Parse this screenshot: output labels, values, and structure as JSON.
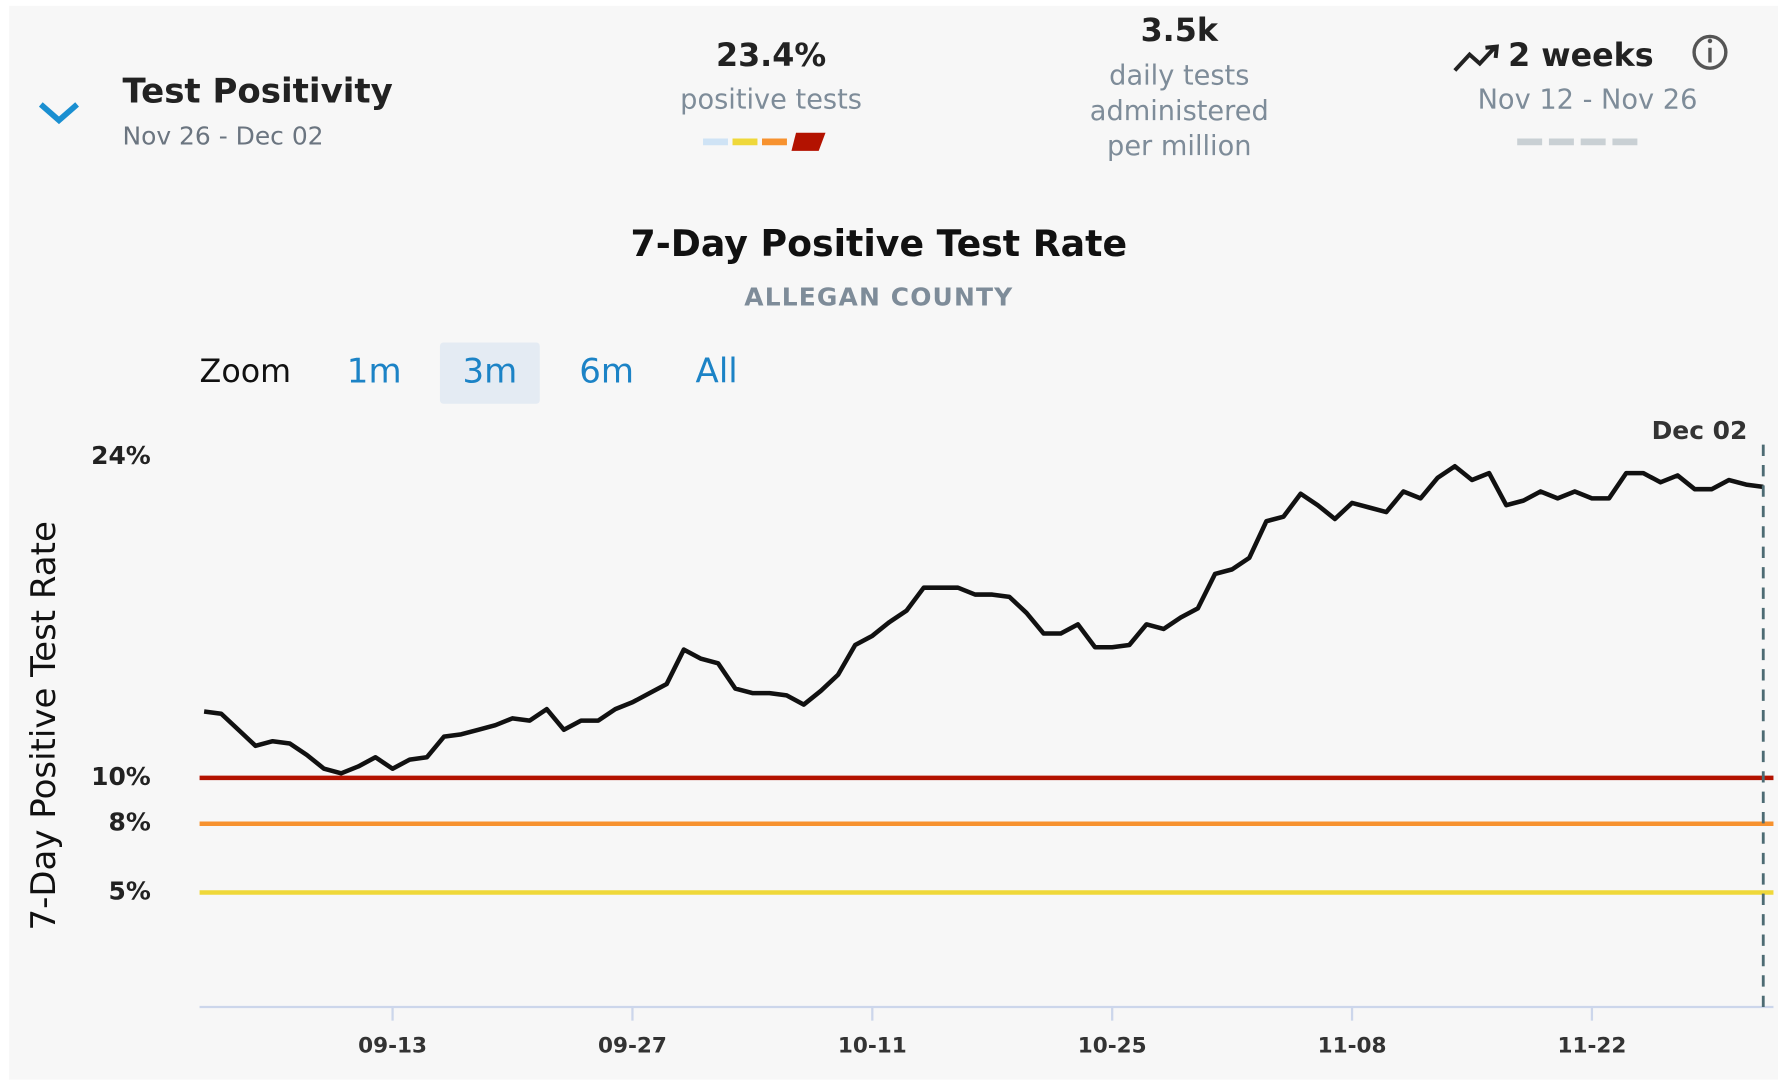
{
  "header": {
    "title": "Test Positivity",
    "date_range": "Nov 26 - Dec 02",
    "metrics": [
      {
        "value": "23.4%",
        "lines": [
          "positive tests"
        ]
      },
      {
        "value": "3.5k",
        "lines": [
          "daily tests",
          "administered",
          "per million"
        ]
      },
      {
        "value": "2 weeks",
        "lines": [
          "Nov 12 - Nov 26"
        ]
      }
    ]
  },
  "zoom": {
    "label": "Zoom",
    "options": [
      "1m",
      "3m",
      "6m",
      "All"
    ],
    "selected": "3m"
  },
  "chart_data": {
    "type": "line",
    "title": "7-Day Positive Test Rate",
    "subtitle": "ALLEGAN COUNTY",
    "y_label": "7-Day Positive Test Rate",
    "x": [
      "09-02",
      "09-03",
      "09-04",
      "09-05",
      "09-06",
      "09-07",
      "09-08",
      "09-09",
      "09-10",
      "09-11",
      "09-12",
      "09-13",
      "09-14",
      "09-15",
      "09-16",
      "09-17",
      "09-18",
      "09-19",
      "09-20",
      "09-21",
      "09-22",
      "09-23",
      "09-24",
      "09-25",
      "09-26",
      "09-27",
      "09-28",
      "09-29",
      "09-30",
      "10-01",
      "10-02",
      "10-03",
      "10-04",
      "10-05",
      "10-06",
      "10-07",
      "10-08",
      "10-09",
      "10-10",
      "10-11",
      "10-12",
      "10-13",
      "10-14",
      "10-15",
      "10-16",
      "10-17",
      "10-18",
      "10-19",
      "10-20",
      "10-21",
      "10-22",
      "10-23",
      "10-24",
      "10-25",
      "10-26",
      "10-27",
      "10-28",
      "10-29",
      "10-30",
      "10-31",
      "11-01",
      "11-02",
      "11-03",
      "11-04",
      "11-05",
      "11-06",
      "11-07",
      "11-08",
      "11-09",
      "11-10",
      "11-11",
      "11-12",
      "11-13",
      "11-14",
      "11-15",
      "11-16",
      "11-17",
      "11-18",
      "11-19",
      "11-20",
      "11-21",
      "11-22",
      "11-23",
      "11-24",
      "11-25",
      "11-26",
      "11-27",
      "11-28",
      "11-29",
      "11-30",
      "12-01",
      "12-02"
    ],
    "series": [
      {
        "name": "7-Day Positive Test Rate",
        "color": "#111111",
        "values": [
          12.9,
          12.8,
          12.1,
          11.4,
          11.6,
          11.5,
          11.0,
          10.4,
          10.2,
          10.5,
          10.9,
          10.4,
          10.8,
          10.9,
          11.8,
          11.9,
          12.1,
          12.3,
          12.6,
          12.5,
          13.0,
          12.1,
          12.5,
          12.5,
          13.0,
          13.3,
          13.7,
          14.1,
          15.6,
          15.2,
          15.0,
          13.9,
          13.7,
          13.7,
          13.6,
          13.2,
          13.8,
          14.5,
          15.8,
          16.2,
          16.8,
          17.3,
          18.3,
          18.3,
          18.3,
          18.0,
          18.0,
          17.9,
          17.2,
          16.3,
          16.3,
          16.7,
          15.7,
          15.7,
          15.8,
          16.7,
          16.5,
          17.0,
          17.4,
          18.9,
          19.1,
          19.6,
          21.2,
          21.4,
          22.4,
          21.9,
          21.3,
          22.0,
          21.8,
          21.6,
          22.5,
          22.2,
          23.1,
          23.6,
          23.0,
          23.3,
          21.9,
          22.1,
          22.5,
          22.2,
          22.5,
          22.2,
          22.2,
          23.3,
          23.3,
          22.9,
          23.2,
          22.6,
          22.6,
          23.0,
          22.8,
          22.7
        ]
      }
    ],
    "xlim": [
      "09-02",
      "12-02"
    ],
    "xticks": [
      "09-13",
      "09-27",
      "10-11",
      "10-25",
      "11-08",
      "11-22"
    ],
    "ylim": [
      0,
      24
    ],
    "yticks": [
      {
        "value": 5,
        "label": "5%"
      },
      {
        "value": 8,
        "label": "8%"
      },
      {
        "value": 10,
        "label": "10%"
      },
      {
        "value": 24,
        "label": "24%"
      }
    ],
    "thresholds": [
      {
        "value": 10,
        "color": "#b31200"
      },
      {
        "value": 8,
        "color": "#f7922f"
      },
      {
        "value": 5,
        "color": "#efd83a"
      }
    ],
    "annotation": {
      "text": "Dec 02",
      "x": "12-02"
    }
  }
}
